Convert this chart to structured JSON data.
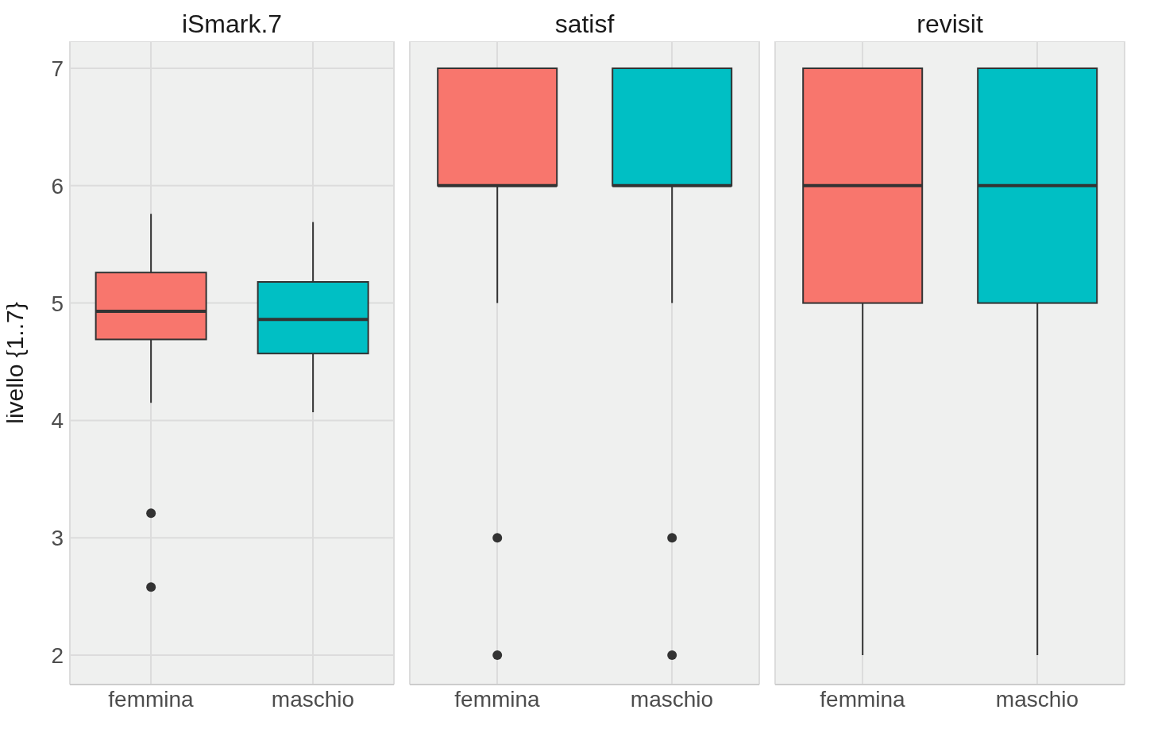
{
  "chart_data": [
    {
      "type": "box",
      "title": "iSmark.7",
      "ylabel": "livello {1..7}",
      "categories": [
        "femmina",
        "maschio"
      ],
      "colors": [
        "#f8766d",
        "#00bfc4"
      ],
      "ylim": [
        1.75,
        7.23
      ],
      "yticks": [
        2,
        3,
        4,
        5,
        6,
        7
      ],
      "grid": true,
      "boxes": [
        {
          "low": 4.15,
          "q1": 4.69,
          "median": 4.93,
          "q3": 5.26,
          "high": 5.76,
          "outliers": [
            3.21,
            2.58
          ]
        },
        {
          "low": 4.07,
          "q1": 4.57,
          "median": 4.86,
          "q3": 5.18,
          "high": 5.69
        }
      ]
    },
    {
      "type": "box",
      "title": "satisf",
      "categories": [
        "femmina",
        "maschio"
      ],
      "colors": [
        "#f8766d",
        "#00bfc4"
      ],
      "ylim": [
        1.75,
        7.23
      ],
      "yticks": [
        2,
        3,
        4,
        5,
        6,
        7
      ],
      "grid": true,
      "tick_labels": "x",
      "boxes": [
        {
          "low": 5,
          "q1": 6,
          "median": 6,
          "q3": 7,
          "high": 7,
          "outliers": [
            3,
            2
          ]
        },
        {
          "low": 5,
          "q1": 6,
          "median": 6,
          "q3": 7,
          "high": 7,
          "outliers": [
            3,
            2
          ]
        }
      ]
    },
    {
      "type": "box",
      "title": "revisit",
      "categories": [
        "femmina",
        "maschio"
      ],
      "colors": [
        "#f8766d",
        "#00bfc4"
      ],
      "ylim": [
        1.75,
        7.23
      ],
      "yticks": [
        2,
        3,
        4,
        5,
        6,
        7
      ],
      "grid": true,
      "tick_labels": "x",
      "boxes": [
        {
          "low": 2,
          "q1": 5,
          "median": 6,
          "q3": 7,
          "high": 7
        },
        {
          "low": 2,
          "q1": 5,
          "median": 6,
          "q3": 7,
          "high": 7
        }
      ]
    }
  ]
}
